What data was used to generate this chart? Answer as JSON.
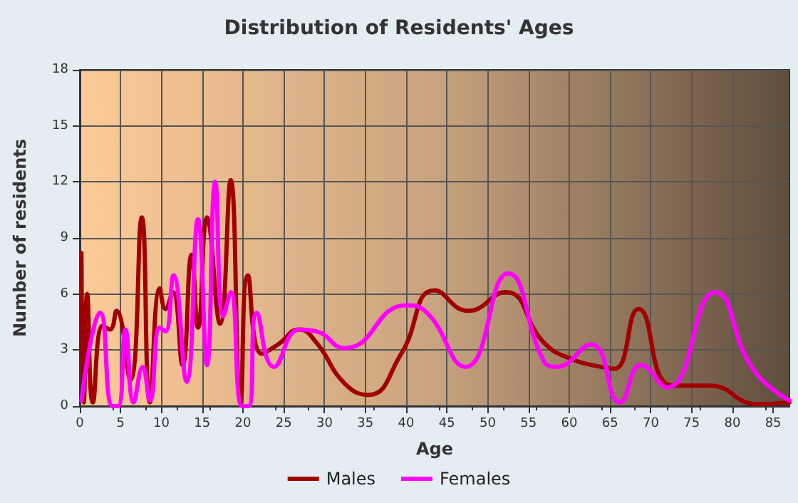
{
  "chart_data": {
    "type": "line",
    "title": "Distribution of Residents' Ages",
    "xlabel": "Age",
    "ylabel": "Number of residents",
    "xlim": [
      0,
      87
    ],
    "xticks": [
      0,
      5,
      10,
      15,
      20,
      25,
      30,
      35,
      40,
      45,
      50,
      55,
      60,
      65,
      70,
      75,
      80,
      85
    ],
    "ylim": [
      0,
      18
    ],
    "yticks": [
      0,
      3,
      6,
      9,
      12,
      15,
      18
    ],
    "grid": true,
    "legend": "bottom",
    "marker": "none",
    "line_style": "solid",
    "series": [
      {
        "name": "Males",
        "color": "#a00000",
        "x": [
          0.2,
          0.5,
          0.9,
          1.6,
          2.8,
          3.7,
          4.5,
          6.2,
          7.6,
          8.6,
          9.8,
          10.5,
          11.4,
          12.6,
          13.7,
          14.5,
          15.6,
          17.2,
          18.5,
          19.7,
          20.6,
          22.3,
          24.3,
          26.9,
          29,
          32.5,
          35.4,
          39.4,
          43.5,
          47.6,
          52.2,
          56.9,
          60.4,
          63.9,
          65.6,
          68.5,
          72.6,
          77.2,
          83.1,
          87
        ],
        "values": [
          8.2,
          0.2,
          6,
          0.2,
          4.3,
          4.1,
          5.1,
          1.4,
          10.1,
          0.2,
          6.3,
          5.2,
          6.1,
          2.2,
          8.1,
          4.2,
          10.1,
          4.4,
          12.1,
          0.2,
          7,
          2.8,
          3.3,
          4.1,
          3.4,
          1.2,
          0.6,
          2.8,
          6.2,
          5.1,
          6.1,
          3.4,
          2.5,
          2.1,
          2,
          5.2,
          1.1,
          1.1,
          0.1,
          0.2
        ]
      },
      {
        "name": "Females",
        "color": "#ff00ff",
        "x": [
          0.2,
          2.5,
          4,
          4.7,
          5.6,
          6.6,
          7.7,
          8.6,
          9.8,
          10.5,
          11.5,
          13.1,
          14.5,
          15.6,
          16.6,
          17.6,
          18.5,
          19.9,
          20.7,
          21.7,
          23.8,
          26.9,
          29,
          32.5,
          40,
          42.3,
          47.3,
          52.5,
          56.9,
          58.4,
          62.7,
          66.2,
          68.8,
          72,
          77.9,
          82.5,
          87
        ],
        "values": [
          0.3,
          5,
          0,
          0,
          4.1,
          0.2,
          2.1,
          0.3,
          4.2,
          4,
          7,
          1.3,
          10,
          2.2,
          12,
          4.8,
          6.1,
          0,
          0,
          5,
          2.1,
          4.1,
          4,
          3.1,
          5.4,
          5.1,
          2.1,
          7.1,
          2.4,
          2.1,
          3.3,
          0.2,
          2.2,
          1,
          6.1,
          2,
          0.3
        ]
      }
    ]
  }
}
